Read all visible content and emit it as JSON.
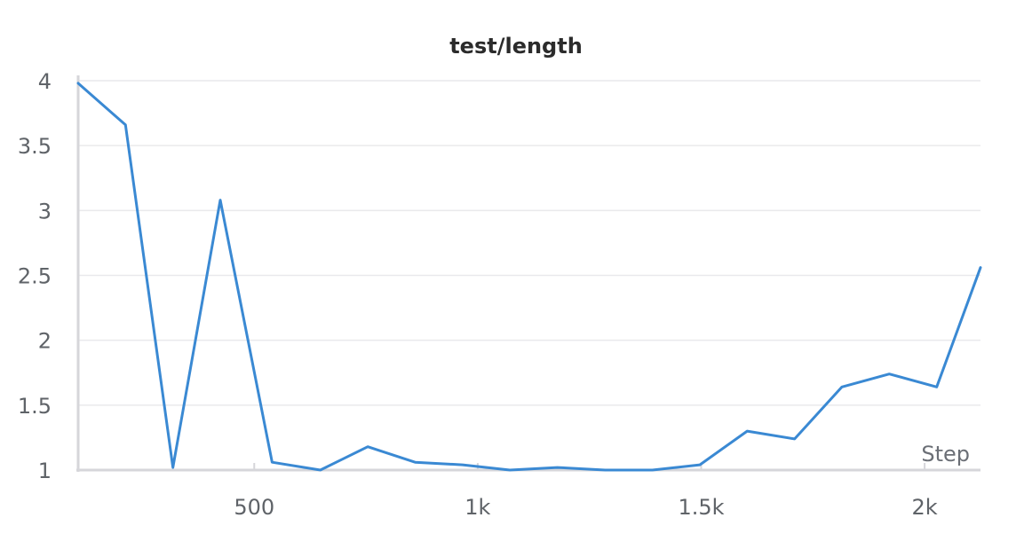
{
  "chart_data": {
    "type": "line",
    "title": "test/length",
    "xlabel": "Step",
    "ylabel": "",
    "xlim": [
      106,
      2125
    ],
    "ylim": [
      1,
      4
    ],
    "x_ticks": [
      500,
      1000,
      1500,
      2000
    ],
    "x_tick_labels": [
      "500",
      "1k",
      "1.5k",
      "2k"
    ],
    "y_ticks": [
      1,
      1.5,
      2,
      2.5,
      3,
      3.5,
      4
    ],
    "y_tick_labels": [
      "1",
      "1.5",
      "2",
      "2.5",
      "3",
      "3.5",
      "4"
    ],
    "grid": true,
    "series": [
      {
        "color": "#3a89d3",
        "x": [
          106,
          212,
          318,
          424,
          540,
          648,
          754,
          860,
          966,
          1072,
          1178,
          1285,
          1391,
          1497,
          1603,
          1709,
          1815,
          1921,
          2027,
          2125
        ],
        "y": [
          3.98,
          3.66,
          1.02,
          3.08,
          1.06,
          1.0,
          1.18,
          1.06,
          1.04,
          1.0,
          1.02,
          1.0,
          1.0,
          1.04,
          1.3,
          1.24,
          1.64,
          1.74,
          1.64,
          2.56
        ]
      }
    ]
  }
}
